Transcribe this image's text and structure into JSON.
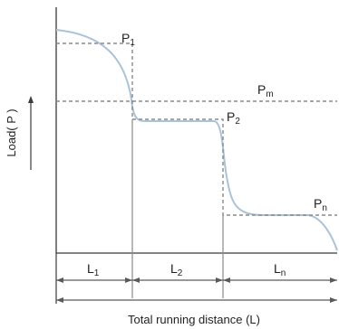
{
  "labels": {
    "p1": "P",
    "p1_sub": "1",
    "p2": "P",
    "p2_sub": "2",
    "pn": "P",
    "pn_sub": "n",
    "pm": "P",
    "pm_sub": "m",
    "l1": "L",
    "l1_sub": "1",
    "l2": "L",
    "l2_sub": "2",
    "ln": "L",
    "ln_sub": "n",
    "y_axis": "Load( P )",
    "x_axis": "Total running distance (L)"
  },
  "colors": {
    "background": "#ffffff",
    "axis": "#3a3a3a",
    "curve": "#a9c3da",
    "dashed": "#8a8a8a"
  }
}
